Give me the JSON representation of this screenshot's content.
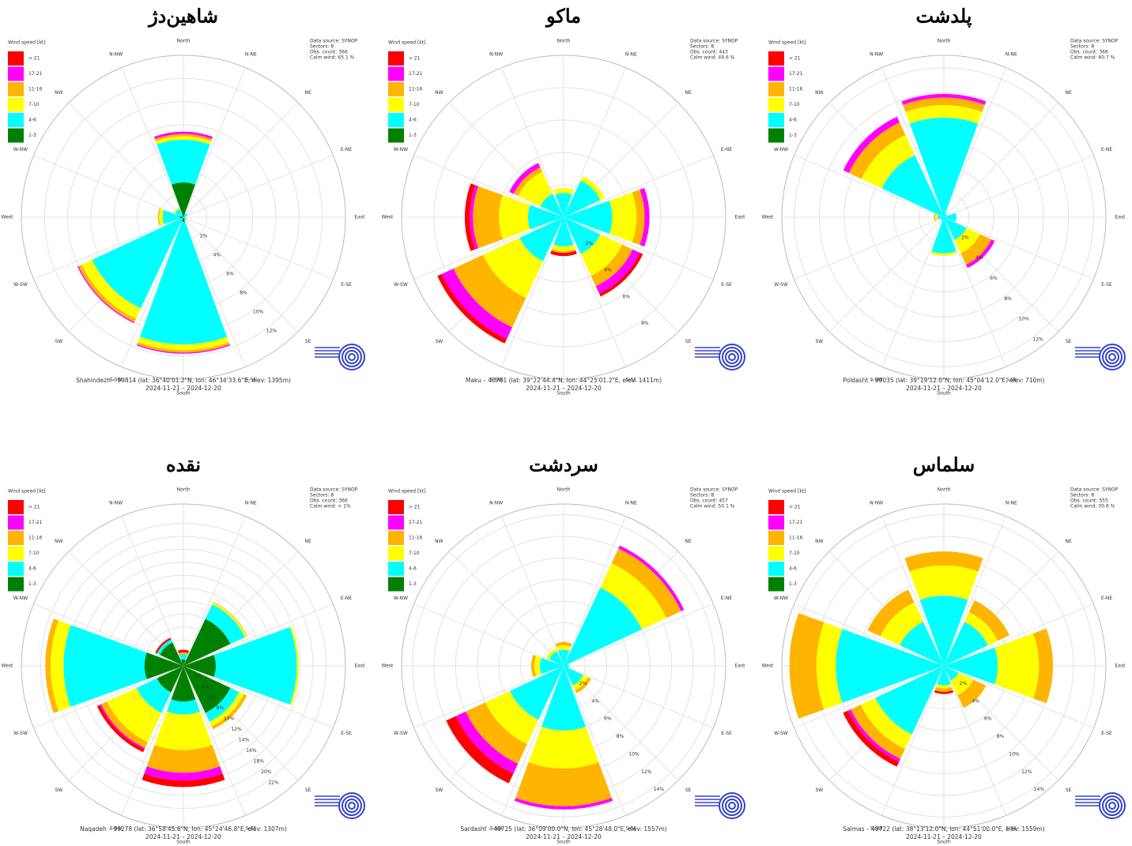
{
  "chart_data": [
    {
      "type": "windrose",
      "title": "شاهین‌دژ",
      "legend_title": "Wind speed [kt]",
      "directions": [
        "North",
        "N-NE",
        "NE",
        "E-NE",
        "East",
        "E-SE",
        "SE",
        "S-SE",
        "South",
        "S-SW",
        "SW",
        "W-SW",
        "West",
        "W-NW",
        "NW",
        "N-NW"
      ],
      "series": [
        {
          "name": "> 21",
          "color": "#ff0000",
          "values": [
            0,
            0,
            0,
            0,
            0,
            0,
            0,
            0
          ]
        },
        {
          "name": "17-21",
          "color": "#ff00ff",
          "values": [
            0.2,
            0,
            0,
            0,
            0.1,
            0.1,
            0,
            0
          ]
        },
        {
          "name": "11-16",
          "color": "#ffb400",
          "values": [
            0.2,
            0,
            0,
            0,
            0.2,
            0.3,
            0.1,
            0
          ]
        },
        {
          "name": "7-10",
          "color": "#ffff00",
          "values": [
            0.3,
            0,
            0,
            0,
            0.5,
            1.0,
            0.3,
            0.1
          ]
        },
        {
          "name": "4-6",
          "color": "#00ffff",
          "values": [
            3.7,
            0.3,
            0.2,
            0.3,
            10.6,
            8.7,
            1.5,
            0.8
          ]
        },
        {
          "name": "1-3",
          "color": "#008000",
          "values": [
            3.0,
            0.1,
            0,
            0,
            0.4,
            0,
            0.3,
            0
          ]
        }
      ],
      "rlim": [
        0,
        14
      ],
      "rticks": [
        {
          "value": 2,
          "label": "2%"
        },
        {
          "value": 4,
          "label": "4%"
        },
        {
          "value": 6,
          "label": "6%"
        },
        {
          "value": 8,
          "label": "8%"
        },
        {
          "value": 10,
          "label": "10%"
        },
        {
          "value": 12,
          "label": "12%"
        }
      ],
      "info": [
        "Data source: SYNOP",
        "Sectors: 8",
        "Obs. count: 366",
        "Calm wind: 65.1 %"
      ],
      "caption": [
        "Shahindezh – 99814 (lat: 36°40'01.2\"N, lon: 46°34'33.6\"E, elev: 1395m)",
        "2024-11-21 – 2024-12-20"
      ]
    },
    {
      "type": "windrose",
      "title": "ماکو",
      "legend_title": "Wind speed [kt]",
      "directions": [
        "North",
        "N-NE",
        "NE",
        "E-NE",
        "East",
        "E-SE",
        "SE",
        "S-SE",
        "South",
        "S-SW",
        "SW",
        "W-SW",
        "West",
        "W-NW",
        "NW",
        "N-NW"
      ],
      "series": [
        {
          "name": "> 21",
          "color": "#ff0000",
          "values": [
            0,
            0,
            0,
            0.2,
            0.2,
            0.3,
            0.3,
            0
          ]
        },
        {
          "name": "17-21",
          "color": "#ff00ff",
          "values": [
            0,
            0,
            0.3,
            0.5,
            0,
            0.8,
            0.2,
            0.3
          ]
        },
        {
          "name": "11-16",
          "color": "#ffb400",
          "values": [
            0,
            0,
            0.5,
            0.7,
            0.1,
            2.0,
            1.6,
            0.3
          ]
        },
        {
          "name": "7-10",
          "color": "#ffff00",
          "values": [
            0.3,
            0.3,
            1.5,
            1.5,
            0.3,
            2.5,
            1.8,
            1.5
          ]
        },
        {
          "name": "4-6",
          "color": "#00ffff",
          "values": [
            1.5,
            2.5,
            3.0,
            2.5,
            1.8,
            3.0,
            2.2,
            1.6
          ]
        },
        {
          "name": "1-3",
          "color": "#008000",
          "values": [
            0,
            0,
            0,
            0,
            0,
            0,
            0,
            0
          ]
        }
      ],
      "rlim": [
        0,
        10
      ],
      "rticks": [
        {
          "value": 2,
          "label": "2%"
        },
        {
          "value": 4,
          "label": "4%"
        },
        {
          "value": 6,
          "label": "6%"
        },
        {
          "value": 8,
          "label": "8%"
        }
      ],
      "info": [
        "Data source: SYNOP",
        "Sectors: 8",
        "Obs. count: 443",
        "Calm wind: 49.6 %"
      ],
      "caption": [
        "Maku – 40701 (lat: 39°22'44.4\"N, lon: 44°25'01.2\"E, elev: 1411m)",
        "2024-11-21 – 2024-12-20"
      ]
    },
    {
      "type": "windrose",
      "title": "پلدشت",
      "legend_title": "Wind speed [kt]",
      "directions": [
        "North",
        "N-NE",
        "NE",
        "E-NE",
        "East",
        "E-SE",
        "SE",
        "S-SE",
        "South",
        "S-SW",
        "SW",
        "W-SW",
        "West",
        "W-NW",
        "NW",
        "N-NW"
      ],
      "series": [
        {
          "name": "> 21",
          "color": "#ff0000",
          "values": [
            0,
            0,
            0,
            0,
            0,
            0,
            0,
            0
          ]
        },
        {
          "name": "17-21",
          "color": "#ff00ff",
          "values": [
            0.3,
            0,
            0,
            0.3,
            0,
            0,
            0,
            0.5
          ]
        },
        {
          "name": "11-16",
          "color": "#ffb400",
          "values": [
            0.6,
            0,
            0,
            1.0,
            0,
            0,
            0.1,
            1.1
          ]
        },
        {
          "name": "7-10",
          "color": "#ffff00",
          "values": [
            1.0,
            0,
            0,
            1.2,
            0.2,
            0,
            0.2,
            1.8
          ]
        },
        {
          "name": "4-6",
          "color": "#00ffff",
          "values": [
            8.0,
            0.3,
            1.0,
            2.0,
            2.9,
            0.3,
            0.5,
            5.5
          ]
        },
        {
          "name": "1-3",
          "color": "#008000",
          "values": [
            0,
            0,
            0,
            0,
            0,
            0,
            0,
            0
          ]
        }
      ],
      "rlim": [
        0,
        13
      ],
      "rticks": [
        {
          "value": 2,
          "label": "2%"
        },
        {
          "value": 4,
          "label": "4%"
        },
        {
          "value": 6,
          "label": "6%"
        },
        {
          "value": 8,
          "label": "8%"
        },
        {
          "value": 10,
          "label": "10%"
        },
        {
          "value": 12,
          "label": "12%"
        }
      ],
      "info": [
        "Data source: SYNOP",
        "Sectors: 8",
        "Obs. count: 366",
        "Calm wind: 60.7 %"
      ],
      "caption": [
        "Poldasht – 99035 (lat: 39°19'12.0\"N, lon: 45°04'12.0\"E, elev: 710m)",
        "2024-11-21 – 2024-12-20"
      ]
    },
    {
      "type": "windrose",
      "title": "نقده",
      "legend_title": "Wind speed [kt]",
      "directions": [
        "North",
        "N-NE",
        "NE",
        "E-NE",
        "East",
        "E-SE",
        "SE",
        "S-SE",
        "South",
        "S-SW",
        "SW",
        "W-SW",
        "West",
        "W-NW",
        "NW",
        "N-NW"
      ],
      "series": [
        {
          "name": "> 21",
          "color": "#ff0000",
          "values": [
            0.4,
            0,
            0,
            0,
            1.0,
            0.5,
            0,
            0.3
          ]
        },
        {
          "name": "17-21",
          "color": "#ff00ff",
          "values": [
            0,
            0,
            0,
            0,
            1.2,
            0.2,
            0,
            0
          ]
        },
        {
          "name": "11-16",
          "color": "#ffb400",
          "values": [
            0.3,
            0.1,
            0,
            0.5,
            3.5,
            1.0,
            0.8,
            0
          ]
        },
        {
          "name": "7-10",
          "color": "#ffff00",
          "values": [
            0,
            0.3,
            0.3,
            0.8,
            5.5,
            5.0,
            2.0,
            0
          ]
        },
        {
          "name": "4-6",
          "color": "#00ffff",
          "values": [
            0.8,
            2.5,
            12.5,
            1.5,
            2.0,
            3.5,
            12.5,
            0.5
          ]
        },
        {
          "name": "1-3",
          "color": "#008000",
          "values": [
            1.0,
            8.0,
            5.0,
            8.0,
            5.5,
            4.5,
            6.0,
            4.0
          ]
        }
      ],
      "rlim": [
        0,
        25
      ],
      "rticks": [
        {
          "value": 2,
          "label": "2%"
        },
        {
          "value": 4,
          "label": "4%"
        },
        {
          "value": 6,
          "label": "6%"
        },
        {
          "value": 8,
          "label": "8%"
        },
        {
          "value": 10,
          "label": "10%"
        },
        {
          "value": 12,
          "label": "12%"
        },
        {
          "value": 14,
          "label": "14%"
        },
        {
          "value": 16,
          "label": "16%"
        },
        {
          "value": 18,
          "label": "18%"
        },
        {
          "value": 20,
          "label": "20%"
        },
        {
          "value": 22,
          "label": "22%"
        }
      ],
      "info": [
        "Data source: SYNOP",
        "Sectors: 8",
        "Obs. count: 366",
        "Calm wind: < 1%"
      ],
      "caption": [
        "Naqadeh – 99278 (lat: 36°58'45.6\"N, lon: 45°24'46.8\"E, elev: 1307m)",
        "2024-11-21 – 2024-12-20"
      ]
    },
    {
      "type": "windrose",
      "title": "سردشت",
      "legend_title": "Wind speed [kt]",
      "directions": [
        "North",
        "N-NE",
        "NE",
        "E-NE",
        "East",
        "E-SE",
        "SE",
        "S-SE",
        "South",
        "S-SW",
        "SW",
        "W-SW",
        "West",
        "W-NW",
        "NW",
        "N-NW"
      ],
      "series": [
        {
          "name": "> 21",
          "color": "#ff0000",
          "values": [
            0,
            0,
            0,
            0,
            0,
            1.0,
            0,
            0
          ]
        },
        {
          "name": "17-21",
          "color": "#ff00ff",
          "values": [
            0,
            0.3,
            0,
            0,
            0.3,
            1.0,
            0,
            0
          ]
        },
        {
          "name": "11-16",
          "color": "#ffb400",
          "values": [
            0.3,
            1.5,
            0,
            0.3,
            3.5,
            2.0,
            0.3,
            0
          ]
        },
        {
          "name": "7-10",
          "color": "#ffff00",
          "values": [
            0.4,
            2.5,
            0,
            0.5,
            3.5,
            2.5,
            0.5,
            0.3
          ]
        },
        {
          "name": "4-6",
          "color": "#00ffff",
          "values": [
            1.5,
            8.0,
            0.5,
            2.0,
            6.0,
            5.5,
            2.2,
            1.5
          ]
        },
        {
          "name": "1-3",
          "color": "#008000",
          "values": [
            0,
            0,
            0,
            0,
            0,
            0,
            0,
            0
          ]
        }
      ],
      "rlim": [
        0,
        15
      ],
      "rticks": [
        {
          "value": 2,
          "label": "2%"
        },
        {
          "value": 4,
          "label": "4%"
        },
        {
          "value": 6,
          "label": "6%"
        },
        {
          "value": 8,
          "label": "8%"
        },
        {
          "value": 10,
          "label": "10%"
        },
        {
          "value": 12,
          "label": "12%"
        },
        {
          "value": 14,
          "label": "14%"
        }
      ],
      "info": [
        "Data source: SYNOP",
        "Sectors: 8",
        "Obs. count: 457",
        "Calm wind: 50.1 %"
      ],
      "caption": [
        "Sardasht – 40725 (lat: 36°09'00.0\"N, lon: 45°28'48.0\"E, elev: 1557m)",
        "2024-11-21 – 2024-12-20"
      ]
    },
    {
      "type": "windrose",
      "title": "سلماس",
      "legend_title": "Wind speed [kt]",
      "directions": [
        "North",
        "N-NE",
        "NE",
        "E-NE",
        "East",
        "E-SE",
        "SE",
        "S-SE",
        "South",
        "S-SW",
        "SW",
        "W-SW",
        "West",
        "W-NW",
        "NW",
        "N-NW"
      ],
      "series": [
        {
          "name": "> 21",
          "color": "#ff0000",
          "values": [
            0,
            0,
            0,
            0,
            0.2,
            0.5,
            0,
            0
          ]
        },
        {
          "name": "17-21",
          "color": "#ff00ff",
          "values": [
            0,
            0,
            0,
            0,
            0,
            0.3,
            0,
            0
          ]
        },
        {
          "name": "11-16",
          "color": "#ffb400",
          "values": [
            1.3,
            1.2,
            1.3,
            1.3,
            0.3,
            1.0,
            2.5,
            1.3
          ]
        },
        {
          "name": "7-10",
          "color": "#ffff00",
          "values": [
            2.8,
            1.0,
            3.8,
            1.5,
            0.3,
            1.5,
            1.8,
            2.0
          ]
        },
        {
          "name": "4-6",
          "color": "#00ffff",
          "values": [
            6.5,
            4.5,
            5.0,
            1.5,
            1.8,
            7.0,
            10.0,
            4.5
          ]
        },
        {
          "name": "1-3",
          "color": "#008000",
          "values": [
            0,
            0,
            0,
            0,
            0,
            0,
            0,
            0
          ]
        }
      ],
      "rlim": [
        0,
        15
      ],
      "rticks": [
        {
          "value": 2,
          "label": "2%"
        },
        {
          "value": 4,
          "label": "4%"
        },
        {
          "value": 6,
          "label": "6%"
        },
        {
          "value": 8,
          "label": "8%"
        },
        {
          "value": 10,
          "label": "10%"
        },
        {
          "value": 12,
          "label": "12%"
        },
        {
          "value": 14,
          "label": "14%"
        }
      ],
      "info": [
        "Data source: SYNOP",
        "Sectors: 8",
        "Obs. count: 555",
        "Calm wind: 30.6 %"
      ],
      "caption": [
        "Salmas – 40722 (lat: 38°13'12.0\"N, lon: 44°51'00.0\"E, elev: 1559m)",
        "2024-11-21 – 2024-12-20"
      ]
    }
  ]
}
